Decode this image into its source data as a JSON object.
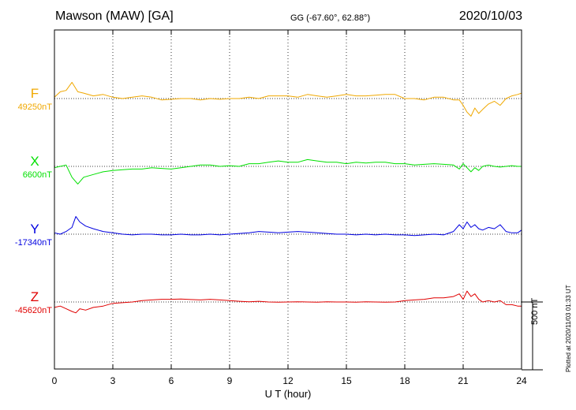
{
  "header": {
    "station": "Mawson (MAW)  [GA]",
    "coords": "GG (-67.60°,  62.88°)",
    "date": "2020/10/03"
  },
  "footer": {
    "plotted": "Plotted at 2020/11/03 01:33 UT"
  },
  "chart_data": {
    "type": "line",
    "xlabel": "U T (hour)",
    "xlim": [
      0,
      24
    ],
    "xticks": [
      0,
      3,
      6,
      9,
      12,
      15,
      18,
      21,
      24
    ],
    "scale_bar": {
      "label": "500 nT",
      "value_nT": 500
    },
    "series": [
      {
        "name": "F",
        "baseline_label": "49250nT",
        "baseline": 49250,
        "color": "#f0a800",
        "x": [
          0,
          0.3,
          0.6,
          0.9,
          1.2,
          1.5,
          2,
          2.5,
          3,
          3.5,
          4,
          4.5,
          5,
          5.5,
          6,
          6.5,
          7,
          7.5,
          8,
          8.5,
          9,
          9.5,
          10,
          10.5,
          11,
          11.5,
          12,
          12.5,
          13,
          13.5,
          14,
          14.5,
          15,
          15.5,
          16,
          16.5,
          17,
          17.5,
          18,
          18.5,
          19,
          19.5,
          20,
          20.5,
          20.8,
          21,
          21.2,
          21.4,
          21.6,
          21.8,
          22,
          22.3,
          22.6,
          22.9,
          23.2,
          23.5,
          23.8,
          24
        ],
        "y": [
          49260,
          49300,
          49310,
          49370,
          49300,
          49290,
          49270,
          49280,
          49260,
          49250,
          49260,
          49270,
          49260,
          49240,
          49245,
          49250,
          49250,
          49240,
          49250,
          49245,
          49250,
          49250,
          49260,
          49250,
          49270,
          49270,
          49270,
          49260,
          49280,
          49270,
          49260,
          49270,
          49280,
          49270,
          49270,
          49275,
          49280,
          49280,
          49250,
          49250,
          49240,
          49260,
          49260,
          49240,
          49240,
          49200,
          49150,
          49120,
          49180,
          49140,
          49170,
          49210,
          49230,
          49200,
          49250,
          49270,
          49280,
          49290
        ]
      },
      {
        "name": "X",
        "baseline_label": "6600nT",
        "baseline": 6600,
        "color": "#00e000",
        "x": [
          0,
          0.3,
          0.6,
          0.9,
          1.2,
          1.5,
          2,
          2.5,
          3,
          3.5,
          4,
          4.5,
          5,
          5.5,
          6,
          6.5,
          7,
          7.5,
          8,
          8.5,
          9,
          9.5,
          10,
          10.5,
          11,
          11.5,
          12,
          12.5,
          13,
          13.5,
          14,
          14.5,
          15,
          15.5,
          16,
          16.5,
          17,
          17.5,
          18,
          18.5,
          19,
          19.5,
          20,
          20.5,
          20.8,
          21,
          21.2,
          21.4,
          21.6,
          21.8,
          22,
          22.3,
          22.6,
          22.9,
          23.2,
          23.5,
          23.8,
          24
        ],
        "y": [
          6590,
          6600,
          6610,
          6520,
          6470,
          6520,
          6540,
          6560,
          6570,
          6575,
          6580,
          6580,
          6590,
          6585,
          6580,
          6590,
          6600,
          6610,
          6610,
          6600,
          6605,
          6600,
          6620,
          6620,
          6630,
          6640,
          6630,
          6630,
          6650,
          6640,
          6630,
          6630,
          6620,
          6630,
          6625,
          6630,
          6630,
          6620,
          6620,
          6610,
          6615,
          6620,
          6615,
          6610,
          6580,
          6620,
          6590,
          6560,
          6590,
          6570,
          6600,
          6610,
          6600,
          6595,
          6600,
          6605,
          6600,
          6600
        ]
      },
      {
        "name": "Y",
        "baseline_label": "-17340nT",
        "baseline": -17340,
        "color": "#0000e0",
        "x": [
          0,
          0.3,
          0.6,
          0.9,
          1.1,
          1.3,
          1.6,
          2,
          2.5,
          3,
          3.5,
          4,
          4.5,
          5,
          5.5,
          6,
          6.5,
          7,
          7.5,
          8,
          8.5,
          9,
          9.5,
          10,
          10.5,
          11,
          11.5,
          12,
          12.5,
          13,
          13.5,
          14,
          14.5,
          15,
          15.5,
          16,
          16.5,
          17,
          17.5,
          18,
          18.5,
          19,
          19.5,
          20,
          20.5,
          20.8,
          21,
          21.2,
          21.4,
          21.6,
          21.8,
          22,
          22.3,
          22.6,
          22.9,
          23.2,
          23.5,
          23.8,
          24
        ],
        "y": [
          -17330,
          -17340,
          -17320,
          -17290,
          -17210,
          -17250,
          -17280,
          -17300,
          -17320,
          -17330,
          -17340,
          -17345,
          -17340,
          -17340,
          -17345,
          -17345,
          -17340,
          -17345,
          -17345,
          -17340,
          -17345,
          -17340,
          -17335,
          -17330,
          -17320,
          -17325,
          -17330,
          -17325,
          -17320,
          -17325,
          -17330,
          -17335,
          -17340,
          -17340,
          -17345,
          -17340,
          -17345,
          -17340,
          -17345,
          -17345,
          -17350,
          -17345,
          -17340,
          -17345,
          -17320,
          -17270,
          -17300,
          -17250,
          -17290,
          -17270,
          -17300,
          -17310,
          -17290,
          -17300,
          -17270,
          -17320,
          -17330,
          -17330,
          -17310
        ]
      },
      {
        "name": "Z",
        "baseline_label": "-45620nT",
        "baseline": -45620,
        "color": "#e00000",
        "x": [
          0,
          0.3,
          0.6,
          0.9,
          1.1,
          1.3,
          1.6,
          2,
          2.5,
          3,
          3.5,
          4,
          4.5,
          5,
          5.5,
          6,
          6.5,
          7,
          7.5,
          8,
          8.5,
          9,
          9.5,
          10,
          10.5,
          11,
          11.5,
          12,
          12.5,
          13,
          13.5,
          14,
          14.5,
          15,
          15.5,
          16,
          16.5,
          17,
          17.5,
          18,
          18.5,
          19,
          19.5,
          20,
          20.5,
          20.8,
          21,
          21.2,
          21.4,
          21.6,
          21.8,
          22,
          22.3,
          22.6,
          22.9,
          23.2,
          23.5,
          23.8,
          24
        ],
        "y": [
          -45660,
          -45650,
          -45670,
          -45690,
          -45700,
          -45670,
          -45680,
          -45660,
          -45650,
          -45630,
          -45625,
          -45620,
          -45610,
          -45605,
          -45600,
          -45600,
          -45598,
          -45602,
          -45605,
          -45600,
          -45605,
          -45610,
          -45615,
          -45618,
          -45615,
          -45620,
          -45622,
          -45620,
          -45618,
          -45620,
          -45622,
          -45618,
          -45620,
          -45620,
          -45622,
          -45618,
          -45620,
          -45622,
          -45620,
          -45610,
          -45605,
          -45600,
          -45590,
          -45590,
          -45580,
          -45560,
          -45600,
          -45540,
          -45580,
          -45560,
          -45600,
          -45620,
          -45610,
          -45620,
          -45610,
          -45640,
          -45640,
          -45650,
          -45650
        ]
      }
    ]
  }
}
